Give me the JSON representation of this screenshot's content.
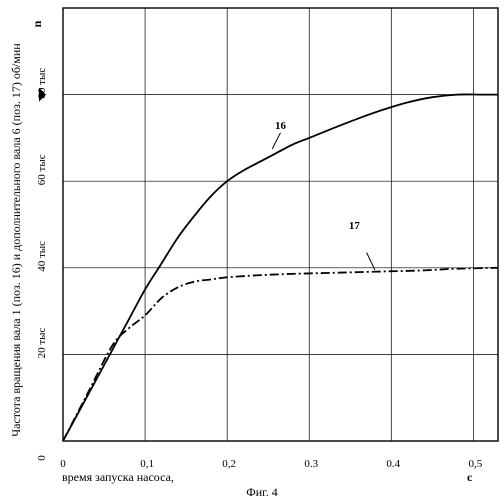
{
  "chart_data": {
    "type": "line",
    "caption": "Фиг. 4",
    "xlabel": "время запуска насоса,",
    "xunit": "с",
    "ylabel": "Частота вращения вала  1 (поз. 16)  и дополнительного вала 6 (поз. 17)   об/мин",
    "yunit": "n",
    "xlim": [
      0,
      0.53
    ],
    "ylim": [
      0,
      100
    ],
    "x_ticks": [
      {
        "value": 0,
        "label": "0"
      },
      {
        "value": 0.1,
        "label": "0,1"
      },
      {
        "value": 0.2,
        "label": "0,2"
      },
      {
        "value": 0.3,
        "label": "0.3"
      },
      {
        "value": 0.4,
        "label": "0.4"
      },
      {
        "value": 0.5,
        "label": "0,5"
      }
    ],
    "y_ticks": [
      {
        "value": 0,
        "label": "0"
      },
      {
        "value": 20,
        "label": "20 тыс"
      },
      {
        "value": 40,
        "label": "40 тыс"
      },
      {
        "value": 60,
        "label": "60 тыс"
      },
      {
        "value": 80,
        "label": "80 тыс"
      }
    ],
    "grid": true,
    "marker_y": 80,
    "series": [
      {
        "name": "16",
        "style": "solid",
        "x": [
          0,
          0.02,
          0.04,
          0.06,
          0.08,
          0.1,
          0.12,
          0.14,
          0.16,
          0.18,
          0.2,
          0.22,
          0.24,
          0.26,
          0.28,
          0.3,
          0.33,
          0.36,
          0.39,
          0.42,
          0.45,
          0.48,
          0.51,
          0.53
        ],
        "y": [
          0,
          7,
          14,
          21,
          28,
          35,
          41,
          47,
          52,
          56.5,
          60,
          62.5,
          64.5,
          66.5,
          68.5,
          70,
          72.3,
          74.5,
          76.5,
          78.2,
          79.4,
          80,
          80,
          80
        ],
        "label_pos": {
          "x": 0.265,
          "y": 72
        },
        "leader": {
          "from": [
            0.265,
            71.2
          ],
          "to": [
            0.255,
            67.5
          ]
        }
      },
      {
        "name": "17",
        "style": "dashdot",
        "x": [
          0,
          0.03,
          0.06,
          0.08,
          0.1,
          0.12,
          0.14,
          0.16,
          0.18,
          0.2,
          0.24,
          0.28,
          0.32,
          0.36,
          0.4,
          0.44,
          0.48,
          0.53
        ],
        "y": [
          0,
          11,
          22,
          26,
          29,
          33,
          35.5,
          36.8,
          37.3,
          37.8,
          38.3,
          38.6,
          38.8,
          39,
          39.2,
          39.4,
          39.8,
          40
        ],
        "label_pos": {
          "x": 0.355,
          "y": 49
        },
        "leader": {
          "from": [
            0.37,
            43.5
          ],
          "to": [
            0.38,
            39.5
          ]
        }
      }
    ]
  }
}
